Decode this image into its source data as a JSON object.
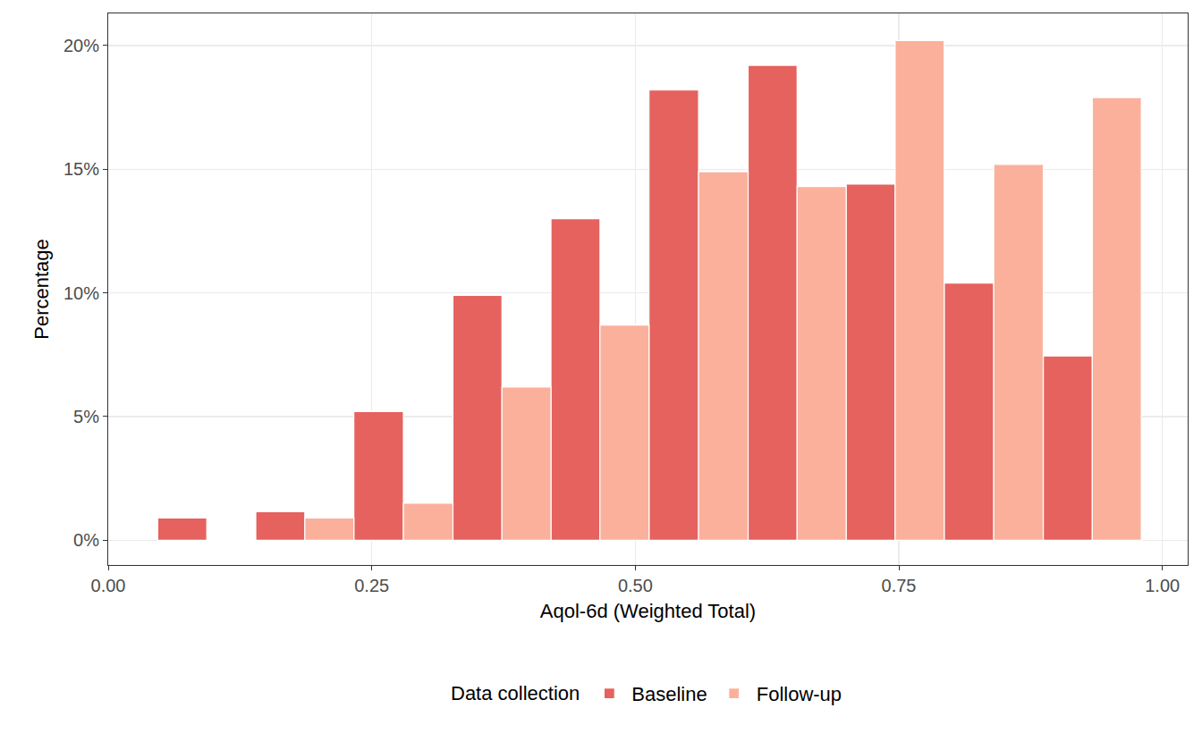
{
  "chart_data": {
    "type": "histogram",
    "x_label": "Aqol-6d (Weighted Total)",
    "y_label": "Percentage",
    "legend_title": "Data collection",
    "legend": "bottom",
    "grid": true,
    "bins": [
      0.047,
      0.14,
      0.233,
      0.327,
      0.42,
      0.513,
      0.607,
      0.7,
      0.793,
      0.887,
      0.98
    ],
    "series": [
      {
        "name": "Baseline",
        "color": "#e5625e",
        "values": [
          0.9,
          1.15,
          5.2,
          9.9,
          13.0,
          18.2,
          19.2,
          14.4,
          10.4,
          7.45
        ]
      },
      {
        "name": "Follow-up",
        "color": "#fbb09c",
        "values": [
          0,
          0.9,
          1.5,
          6.2,
          8.7,
          14.9,
          14.3,
          20.2,
          15.2,
          17.9
        ]
      }
    ],
    "xlim": [
      0,
      1.024
    ],
    "xticks": [
      {
        "value": 0,
        "label": "0.00"
      },
      {
        "value": 0.25,
        "label": "0.25"
      },
      {
        "value": 0.5,
        "label": "0.50"
      },
      {
        "value": 0.75,
        "label": "0.75"
      },
      {
        "value": 1,
        "label": "1.00"
      }
    ],
    "ylim": [
      -1,
      21.3
    ],
    "yticks": [
      {
        "value": 0,
        "label": "0%"
      },
      {
        "value": 5,
        "label": "5%"
      },
      {
        "value": 10,
        "label": "10%"
      },
      {
        "value": 15,
        "label": "15%"
      },
      {
        "value": 20,
        "label": "20%"
      }
    ]
  }
}
